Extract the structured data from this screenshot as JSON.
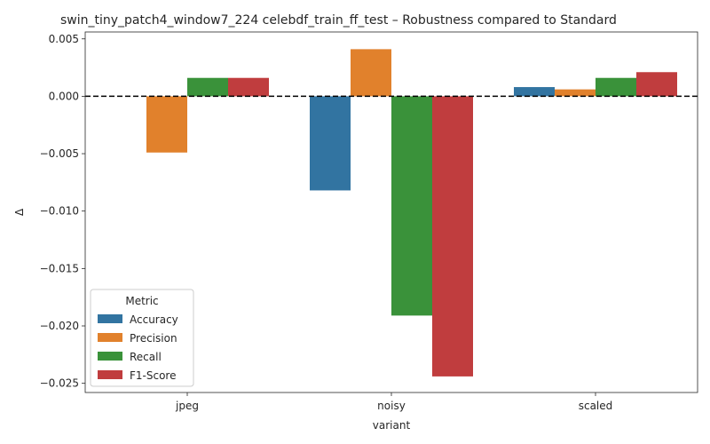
{
  "chart_data": {
    "type": "bar",
    "title": "swin_tiny_patch4_window7_224 celebdf_train_ff_test – Robustness compared to Standard",
    "xlabel": "variant",
    "ylabel": "Δ",
    "categories": [
      "jpeg",
      "noisy",
      "scaled"
    ],
    "ylim": [
      -0.0258,
      0.0056
    ],
    "yticks": [
      -0.025,
      -0.02,
      -0.015,
      -0.01,
      -0.005,
      0.0,
      0.005
    ],
    "ytick_labels": [
      "−0.025",
      "−0.020",
      "−0.015",
      "−0.010",
      "−0.005",
      "0.000",
      "0.005"
    ],
    "reference_line": {
      "y": 0.0,
      "style": "dashed",
      "color": "#000000"
    },
    "grid": false,
    "legend": {
      "title": "Metric",
      "placement": "lower-left"
    },
    "series": [
      {
        "name": "Accuracy",
        "color": "#3274a1",
        "values": [
          0.0,
          -0.0082,
          0.0008
        ]
      },
      {
        "name": "Precision",
        "color": "#e1812c",
        "values": [
          -0.0049,
          0.0041,
          0.0006
        ]
      },
      {
        "name": "Recall",
        "color": "#3a923a",
        "values": [
          0.0016,
          -0.0191,
          0.0016
        ]
      },
      {
        "name": "F1-Score",
        "color": "#c03d3e",
        "values": [
          0.0016,
          -0.0244,
          0.0021
        ]
      }
    ]
  }
}
